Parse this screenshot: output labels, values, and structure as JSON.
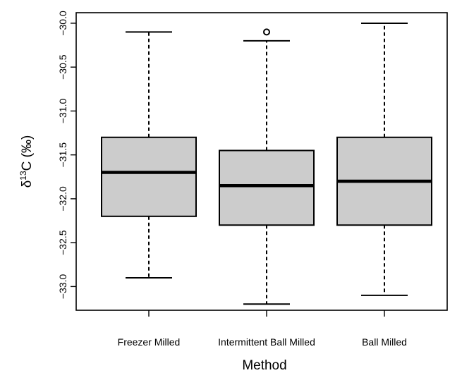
{
  "chart_data": {
    "type": "box",
    "categories": [
      "Freezer Milled",
      "Intermittent Ball Milled",
      "Ball Milled"
    ],
    "series": [
      {
        "category": "Freezer Milled",
        "whisker_low": -32.9,
        "q1": -32.2,
        "median": -31.7,
        "q3": -31.3,
        "whisker_high": -30.1,
        "outliers": []
      },
      {
        "category": "Intermittent Ball Milled",
        "whisker_low": -33.2,
        "q1": -32.3,
        "median": -31.85,
        "q3": -31.45,
        "whisker_high": -30.2,
        "outliers": [
          -30.1
        ]
      },
      {
        "category": "Ball Milled",
        "whisker_low": -33.1,
        "q1": -32.3,
        "median": -31.8,
        "q3": -31.3,
        "whisker_high": -30.0,
        "outliers": []
      }
    ],
    "xlabel": "Method",
    "ylabel_symbol": "δ",
    "ylabel_superscript": "13",
    "ylabel_rest": "C (‰)",
    "yticks": [
      -33.0,
      -32.5,
      -32.0,
      -31.5,
      -31.0,
      -30.5,
      -30.0
    ],
    "ytick_labels": [
      "−33.0",
      "−32.5",
      "−32.0",
      "−31.5",
      "−31.0",
      "−30.5",
      "−30.0"
    ],
    "ylim": [
      -33.27,
      -29.88
    ],
    "box_fill": "#cccccc",
    "line_color": "#000000",
    "grid": false,
    "legend": "none"
  }
}
